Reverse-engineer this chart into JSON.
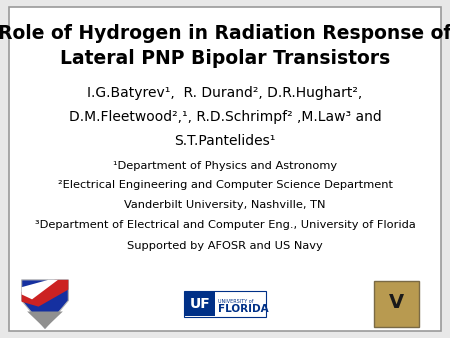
{
  "bg_color": "#e8e8e8",
  "slide_bg": "#ffffff",
  "title_line1": "Role of Hydrogen in Radiation Response of",
  "title_line2": "Lateral PNP Bipolar Transistors",
  "authors_line1": "I.G.Batyrev¹,  R. Durand², D.R.Hughart²,",
  "authors_line2": "D.M.Fleetwood²,¹, R.D.Schrimpf² ,M.Law³ and",
  "authors_line3": "S.T.Pantelides¹",
  "affil1": "¹Department of Physics and Astronomy",
  "affil2": "²Electrical Engineering and Computer Science Department",
  "affil3": "Vanderbilt University, Nashville, TN",
  "affil4": "³Department of Electrical and Computer Eng., University of Florida",
  "affil5": "Supported by AFOSR and US Navy",
  "title_fontsize": 13.5,
  "authors_fontsize": 10.0,
  "affil_fontsize": 8.2,
  "text_color": "#000000",
  "border_color": "#999999"
}
